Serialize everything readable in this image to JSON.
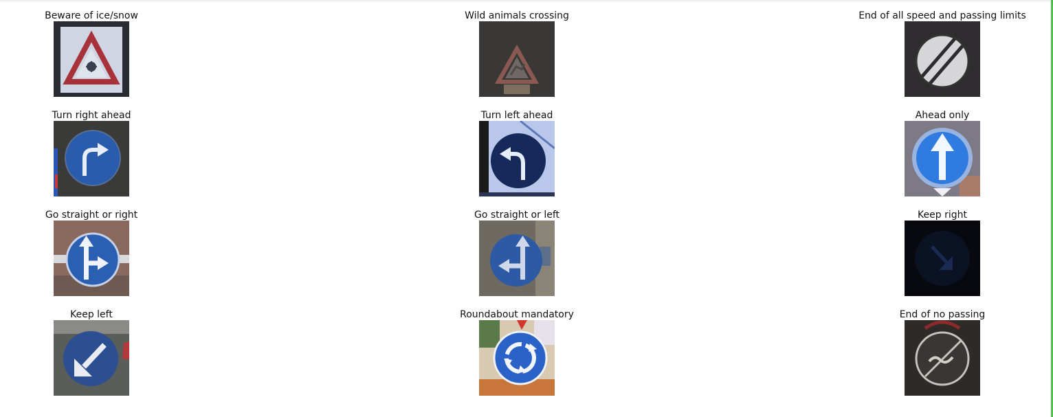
{
  "figure": {
    "signs": [
      {
        "label": "Beware of ice/snow",
        "icon": "ice-snow-warning-icon"
      },
      {
        "label": "Wild animals crossing",
        "icon": "wild-animals-warning-icon"
      },
      {
        "label": "End of all speed and passing limits",
        "icon": "end-of-limits-icon"
      },
      {
        "label": "Turn right ahead",
        "icon": "turn-right-icon"
      },
      {
        "label": "Turn left ahead",
        "icon": "turn-left-icon"
      },
      {
        "label": "Ahead only",
        "icon": "ahead-only-icon"
      },
      {
        "label": "Go straight or right",
        "icon": "straight-or-right-icon"
      },
      {
        "label": "Go straight or left",
        "icon": "straight-or-left-icon"
      },
      {
        "label": "Keep right",
        "icon": "keep-right-icon"
      },
      {
        "label": "Keep left",
        "icon": "keep-left-icon"
      },
      {
        "label": "Roundabout mandatory",
        "icon": "roundabout-icon"
      },
      {
        "label": "End of no passing",
        "icon": "end-no-passing-icon"
      }
    ]
  },
  "colors": {
    "sign_blue": "#2a5fb0",
    "warning_red": "#b8323a",
    "accent_border": "#4cc24c"
  }
}
